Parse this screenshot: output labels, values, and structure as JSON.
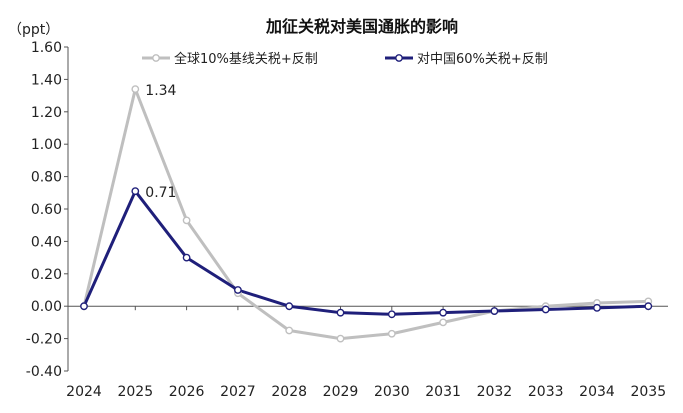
{
  "chart_data": {
    "type": "line",
    "title": "加征关税对美国通胀的影响",
    "ylabel": "（ppt）",
    "xlabel": "",
    "ylim": [
      -0.4,
      1.6
    ],
    "yticks": [
      "1.60",
      "1.40",
      "1.20",
      "1.00",
      "0.80",
      "0.60",
      "0.40",
      "0.20",
      "0.00",
      "-0.20",
      "-0.40"
    ],
    "negative_tick_color": "#e8262d",
    "categories": [
      "2024",
      "2025",
      "2026",
      "2027",
      "2028",
      "2029",
      "2030",
      "2031",
      "2032",
      "2033",
      "2034",
      "2035"
    ],
    "legend_position": "top",
    "series": [
      {
        "name": "全球10%基线关税+反制",
        "color": "#bfbfbf",
        "values": [
          0.0,
          1.34,
          0.53,
          0.08,
          -0.15,
          -0.2,
          -0.17,
          -0.1,
          -0.03,
          0.0,
          0.02,
          0.03
        ]
      },
      {
        "name": "对中国60%关税+反制",
        "color": "#1f1f7a",
        "values": [
          0.0,
          0.71,
          0.3,
          0.1,
          0.0,
          -0.04,
          -0.05,
          -0.04,
          -0.03,
          -0.02,
          -0.01,
          0.0
        ]
      }
    ],
    "annotations": [
      {
        "series": 0,
        "index": 1,
        "text": "1.34"
      },
      {
        "series": 1,
        "index": 1,
        "text": "0.71"
      }
    ]
  }
}
